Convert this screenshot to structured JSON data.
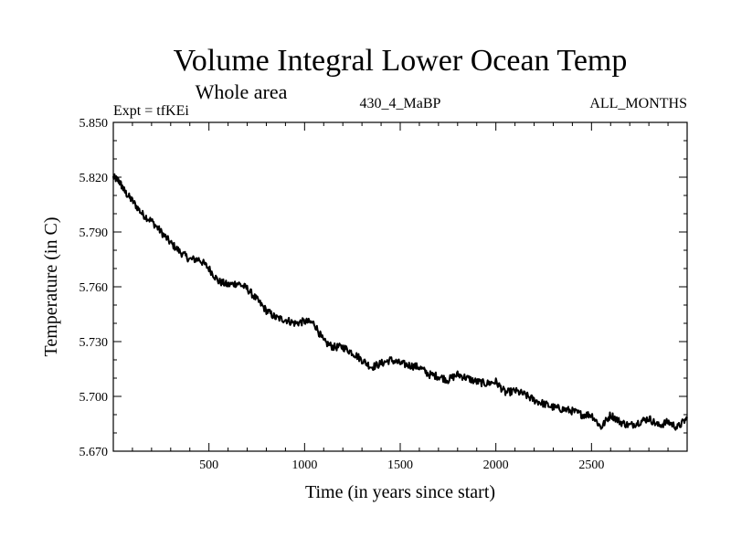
{
  "chart_data": {
    "type": "line",
    "title": "Volume Integral Lower Ocean Temp",
    "subtitle": "Whole area",
    "header_left": "Expt = tfKEi",
    "header_center": "430_4_MaBP",
    "header_right": "ALL_MONTHS",
    "xlabel": "Time (in years since start)",
    "ylabel": "Temperature (in C)",
    "xlim": [
      0,
      3000
    ],
    "ylim": [
      5.67,
      5.85
    ],
    "x_ticks": [
      500,
      1000,
      1500,
      2000,
      2500
    ],
    "x_tick_labels": [
      "500",
      "1000",
      "1500",
      "2000",
      "2500"
    ],
    "y_ticks": [
      5.67,
      5.7,
      5.73,
      5.76,
      5.79,
      5.82,
      5.85
    ],
    "y_tick_labels": [
      "5.670",
      "5.700",
      "5.730",
      "5.760",
      "5.790",
      "5.820",
      "5.850"
    ],
    "grid": false,
    "series": [
      {
        "color": "#000000",
        "x": [
          0,
          30,
          60,
          100,
          150,
          200,
          250,
          300,
          350,
          400,
          450,
          500,
          550,
          600,
          650,
          700,
          750,
          800,
          850,
          900,
          950,
          1000,
          1050,
          1100,
          1150,
          1200,
          1250,
          1300,
          1350,
          1400,
          1450,
          1500,
          1550,
          1600,
          1650,
          1700,
          1750,
          1800,
          1850,
          1900,
          1950,
          2000,
          2050,
          2100,
          2150,
          2200,
          2250,
          2300,
          2350,
          2400,
          2450,
          2500,
          2550,
          2600,
          2650,
          2700,
          2750,
          2800,
          2850,
          2900,
          2950,
          3000
        ],
        "y": [
          5.82,
          5.818,
          5.812,
          5.807,
          5.8,
          5.796,
          5.79,
          5.784,
          5.779,
          5.775,
          5.775,
          5.77,
          5.763,
          5.761,
          5.762,
          5.759,
          5.753,
          5.747,
          5.743,
          5.742,
          5.74,
          5.741,
          5.74,
          5.73,
          5.727,
          5.727,
          5.724,
          5.72,
          5.716,
          5.718,
          5.72,
          5.718,
          5.717,
          5.716,
          5.712,
          5.711,
          5.709,
          5.712,
          5.71,
          5.708,
          5.707,
          5.708,
          5.702,
          5.703,
          5.701,
          5.698,
          5.696,
          5.694,
          5.693,
          5.692,
          5.69,
          5.69,
          5.683,
          5.69,
          5.686,
          5.684,
          5.686,
          5.688,
          5.684,
          5.686,
          5.683,
          5.688
        ]
      }
    ]
  }
}
